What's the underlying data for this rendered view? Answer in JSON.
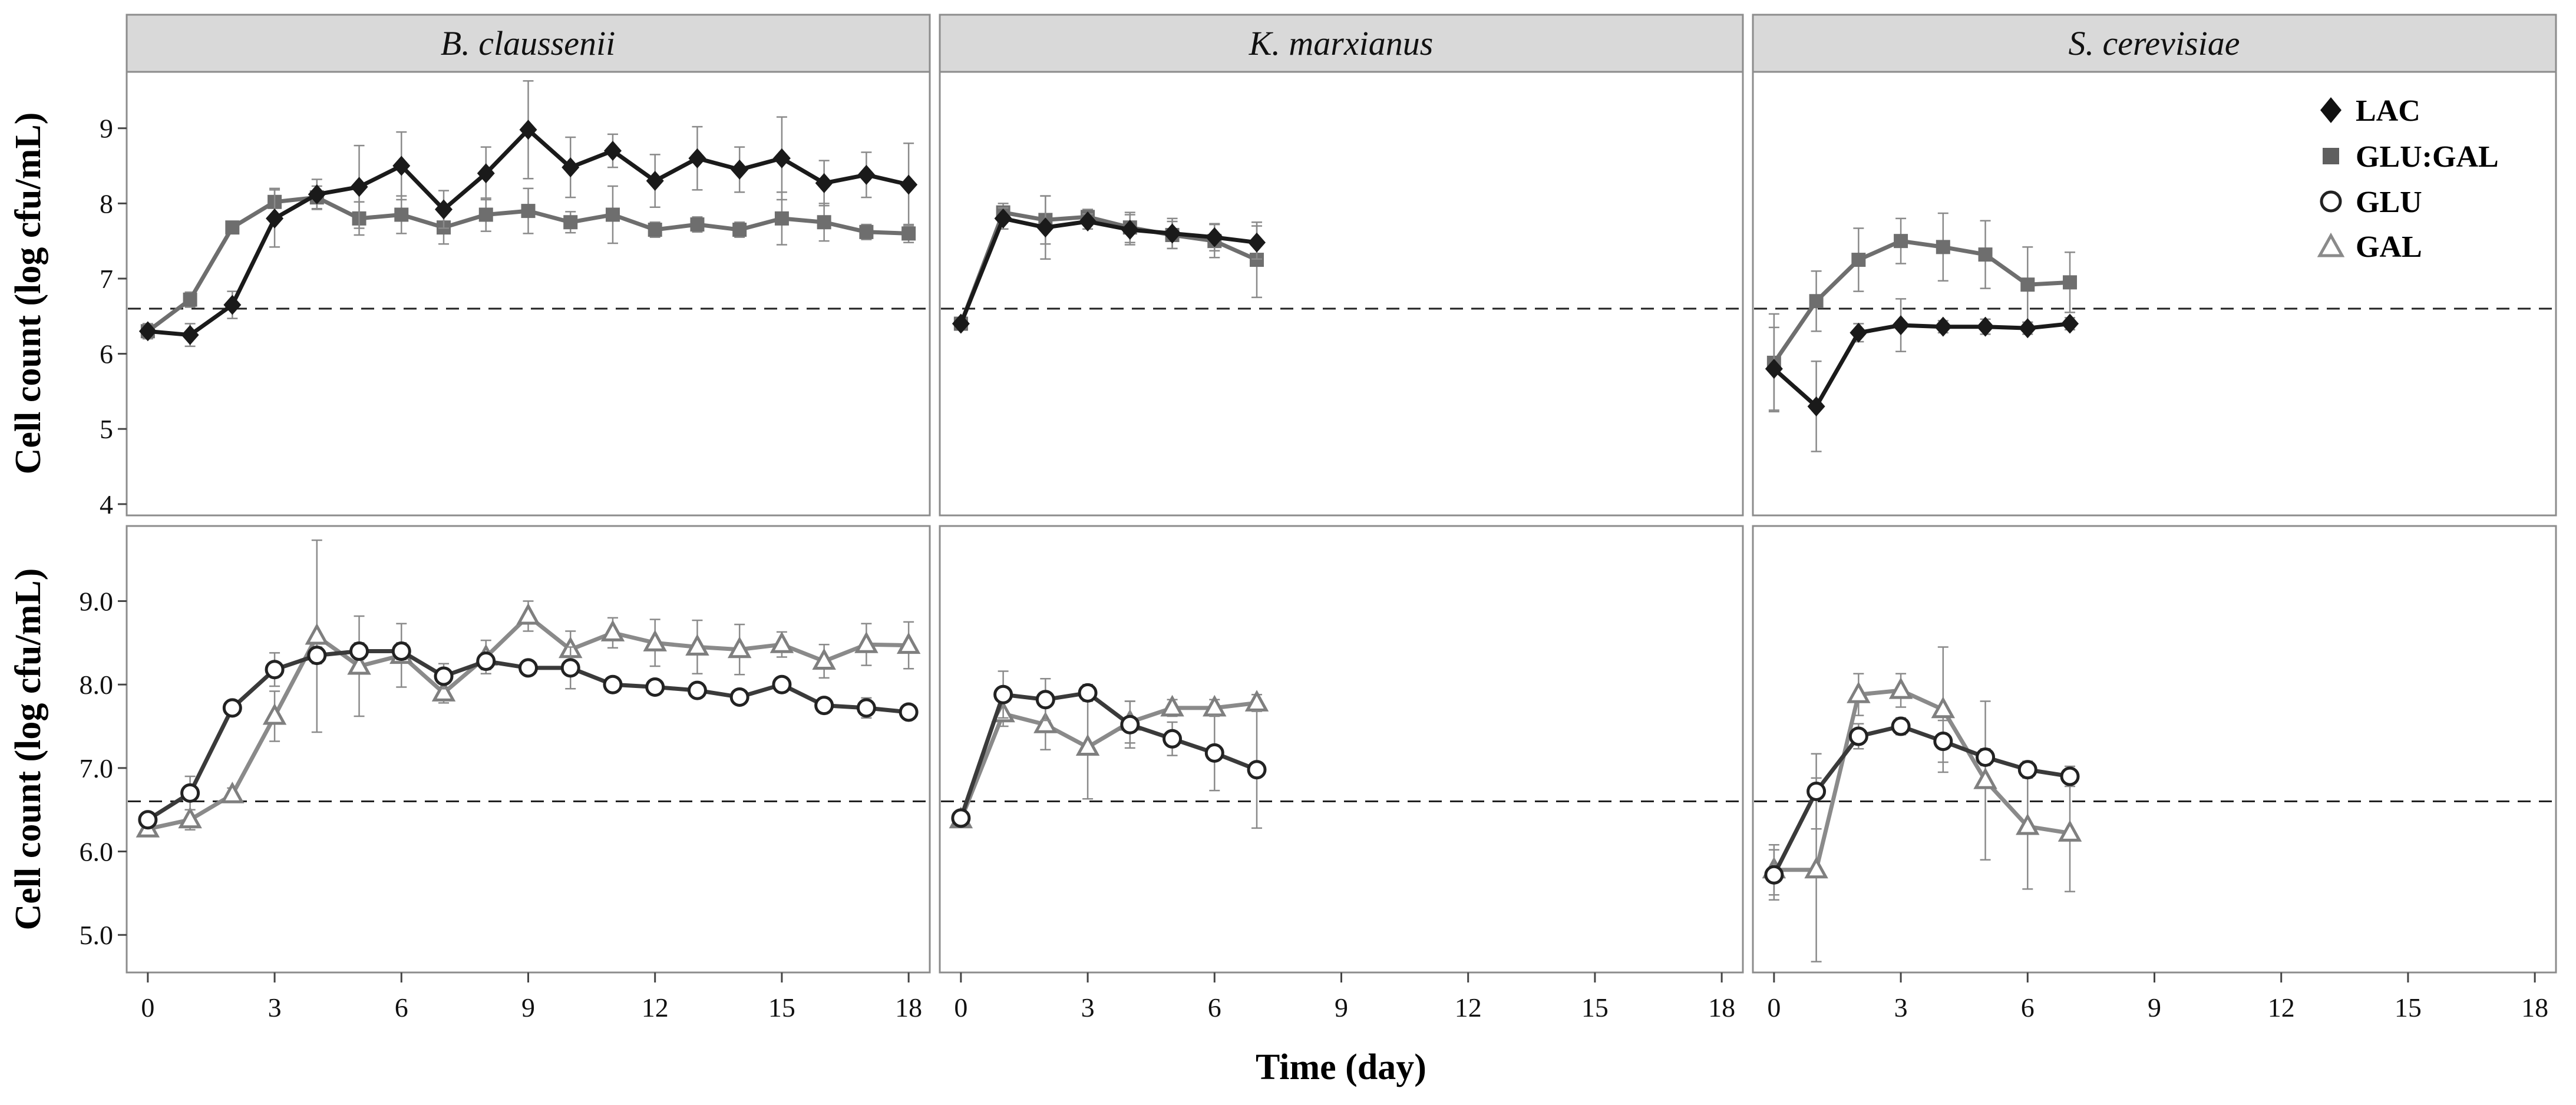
{
  "chart_data": {
    "type": "line",
    "xlabel": "Time (day)",
    "xlim": [
      -0.5,
      18.5
    ],
    "xticks": [
      0,
      3,
      6,
      9,
      12,
      15,
      18
    ],
    "xtick_labels": [
      "0",
      "3",
      "6",
      "9",
      "12",
      "15",
      "18"
    ],
    "reference_line": 6.6,
    "legend": {
      "placement": "top-right of S. cerevisiae top panel",
      "entries": [
        {
          "label": "LAC",
          "marker": "diamond",
          "color": "#111111"
        },
        {
          "label": "GLU:GAL",
          "marker": "square",
          "color": "#5f5f5f"
        },
        {
          "label": "GLU",
          "marker": "circle-open",
          "color": "#333333"
        },
        {
          "label": "GAL",
          "marker": "triangle-open",
          "color": "#8a8a8a"
        }
      ]
    },
    "columns": [
      "B. claussenii",
      "K. marxianus",
      "S. cerevisiae"
    ],
    "rows": [
      {
        "ylabel": "Cell count (log cfu/mL)",
        "ylim": [
          3.85,
          9.75
        ],
        "yticks": [
          4,
          5,
          6,
          7,
          8,
          9
        ],
        "ytick_labels": [
          "4",
          "5",
          "6",
          "7",
          "8",
          "9"
        ],
        "panels": [
          {
            "series": [
              {
                "name": "GLU:GAL",
                "marker": "square",
                "color": "#6e6e6e",
                "x": [
                  0,
                  1,
                  2,
                  3,
                  4,
                  5,
                  6,
                  7,
                  8,
                  9,
                  10,
                  11,
                  12,
                  13,
                  14,
                  15,
                  16,
                  17,
                  18
                ],
                "y": [
                  6.3,
                  6.72,
                  7.68,
                  8.02,
                  8.08,
                  7.8,
                  7.85,
                  7.68,
                  7.85,
                  7.9,
                  7.75,
                  7.85,
                  7.65,
                  7.72,
                  7.65,
                  7.8,
                  7.75,
                  7.62,
                  7.6
                ],
                "err": [
                  0.06,
                  0.1,
                  0.08,
                  0.18,
                  0.15,
                  0.22,
                  0.25,
                  0.22,
                  0.22,
                  0.3,
                  0.14,
                  0.38,
                  0.1,
                  0.1,
                  0.1,
                  0.35,
                  0.25,
                  0.1,
                  0.12
                ]
              },
              {
                "name": "LAC",
                "marker": "diamond",
                "color": "#1a1a1a",
                "x": [
                  0,
                  1,
                  2,
                  3,
                  4,
                  5,
                  6,
                  7,
                  8,
                  9,
                  10,
                  11,
                  12,
                  13,
                  14,
                  15,
                  16,
                  17,
                  18
                ],
                "y": [
                  6.3,
                  6.25,
                  6.65,
                  7.8,
                  8.12,
                  8.22,
                  8.5,
                  7.92,
                  8.4,
                  8.98,
                  8.48,
                  8.7,
                  8.3,
                  8.6,
                  8.45,
                  8.6,
                  8.27,
                  8.38,
                  8.25
                ],
                "err": [
                  0.1,
                  0.15,
                  0.18,
                  0.38,
                  0.2,
                  0.55,
                  0.45,
                  0.25,
                  0.35,
                  0.65,
                  0.4,
                  0.22,
                  0.35,
                  0.42,
                  0.3,
                  0.55,
                  0.3,
                  0.3,
                  0.55
                ]
              }
            ]
          },
          {
            "series": [
              {
                "name": "GLU:GAL",
                "marker": "square",
                "color": "#6e6e6e",
                "x": [
                  0,
                  1,
                  2,
                  3,
                  4,
                  5,
                  6,
                  7
                ],
                "y": [
                  6.4,
                  7.88,
                  7.78,
                  7.82,
                  7.68,
                  7.58,
                  7.5,
                  7.25
                ],
                "err": [
                  0.05,
                  0.12,
                  0.32,
                  0.1,
                  0.2,
                  0.18,
                  0.22,
                  0.5
                ]
              },
              {
                "name": "LAC",
                "marker": "diamond",
                "color": "#1a1a1a",
                "x": [
                  0,
                  1,
                  2,
                  3,
                  4,
                  5,
                  6,
                  7
                ],
                "y": [
                  6.4,
                  7.8,
                  7.68,
                  7.76,
                  7.65,
                  7.6,
                  7.55,
                  7.48
                ],
                "err": [
                  0.05,
                  0.14,
                  0.42,
                  0.1,
                  0.2,
                  0.2,
                  0.18,
                  0.22
                ]
              }
            ]
          },
          {
            "series": [
              {
                "name": "GLU:GAL",
                "marker": "square",
                "color": "#6e6e6e",
                "x": [
                  0,
                  1,
                  2,
                  3,
                  4,
                  5,
                  6,
                  7
                ],
                "y": [
                  5.88,
                  6.7,
                  7.25,
                  7.5,
                  7.42,
                  7.32,
                  6.92,
                  6.95
                ],
                "err": [
                  0.65,
                  0.4,
                  0.42,
                  0.3,
                  0.45,
                  0.45,
                  0.5,
                  0.4
                ]
              },
              {
                "name": "LAC",
                "marker": "diamond",
                "color": "#1a1a1a",
                "x": [
                  0,
                  1,
                  2,
                  3,
                  4,
                  5,
                  6,
                  7
                ],
                "y": [
                  5.8,
                  5.3,
                  6.28,
                  6.38,
                  6.36,
                  6.36,
                  6.34,
                  6.4
                ],
                "err": [
                  0.55,
                  0.6,
                  0.12,
                  0.35,
                  0.08,
                  0.1,
                  0.08,
                  0.08
                ]
              }
            ]
          }
        ]
      },
      {
        "ylabel": "Cell count (log cfu/mL)",
        "ylim": [
          4.55,
          9.9
        ],
        "yticks": [
          5,
          6,
          7,
          8,
          9
        ],
        "ytick_labels": [
          "5.0",
          "6.0",
          "7.0",
          "8.0",
          "9.0"
        ],
        "panels": [
          {
            "series": [
              {
                "name": "GAL",
                "marker": "triangle",
                "color": "#8a8a8a",
                "x": [
                  0,
                  1,
                  2,
                  3,
                  4,
                  5,
                  6,
                  7,
                  8,
                  9,
                  10,
                  11,
                  12,
                  13,
                  14,
                  15,
                  16,
                  17,
                  18
                ],
                "y": [
                  6.27,
                  6.38,
                  6.68,
                  7.62,
                  8.58,
                  8.22,
                  8.35,
                  7.9,
                  8.33,
                  8.82,
                  8.42,
                  8.62,
                  8.5,
                  8.45,
                  8.42,
                  8.48,
                  8.28,
                  8.48,
                  8.47
                ],
                "err": [
                  0.08,
                  0.12,
                  0.08,
                  0.3,
                  1.15,
                  0.6,
                  0.38,
                  0.12,
                  0.2,
                  0.18,
                  0.22,
                  0.18,
                  0.28,
                  0.32,
                  0.3,
                  0.15,
                  0.2,
                  0.25,
                  0.28
                ]
              },
              {
                "name": "GLU",
                "marker": "circle",
                "color": "#3a3a3a",
                "x": [
                  0,
                  1,
                  2,
                  3,
                  4,
                  5,
                  6,
                  7,
                  8,
                  9,
                  10,
                  11,
                  12,
                  13,
                  14,
                  15,
                  16,
                  17,
                  18
                ],
                "y": [
                  6.38,
                  6.7,
                  7.72,
                  8.18,
                  8.35,
                  8.4,
                  8.4,
                  8.1,
                  8.28,
                  8.2,
                  8.2,
                  8.0,
                  7.97,
                  7.93,
                  7.85,
                  8.0,
                  7.75,
                  7.72,
                  7.67
                ],
                "err": [
                  0.05,
                  0.2,
                  0.05,
                  0.2,
                  0.1,
                  0.1,
                  0.1,
                  0.15,
                  0.1,
                  0.05,
                  0.25,
                  0.08,
                  0.05,
                  0.05,
                  0.05,
                  0.08,
                  0.08,
                  0.12,
                  0.05
                ]
              }
            ]
          },
          {
            "series": [
              {
                "name": "GAL",
                "marker": "triangle",
                "color": "#8a8a8a",
                "x": [
                  0,
                  1,
                  2,
                  3,
                  4,
                  5,
                  6,
                  7
                ],
                "y": [
                  6.38,
                  7.65,
                  7.52,
                  7.25,
                  7.55,
                  7.72,
                  7.72,
                  7.78
                ],
                "err": [
                  0.05,
                  0.15,
                  0.3,
                  0.62,
                  0.25,
                  0.1,
                  0.1,
                  0.1
                ]
              },
              {
                "name": "GLU",
                "marker": "circle",
                "color": "#3a3a3a",
                "x": [
                  0,
                  1,
                  2,
                  3,
                  4,
                  5,
                  6,
                  7
                ],
                "y": [
                  6.4,
                  7.88,
                  7.82,
                  7.9,
                  7.52,
                  7.35,
                  7.18,
                  6.98
                ],
                "err": [
                  0.05,
                  0.28,
                  0.25,
                  0.1,
                  0.28,
                  0.2,
                  0.45,
                  0.7
                ]
              }
            ]
          },
          {
            "series": [
              {
                "name": "GAL",
                "marker": "triangle",
                "color": "#8a8a8a",
                "x": [
                  0,
                  1,
                  2,
                  3,
                  4,
                  5,
                  6,
                  7
                ],
                "y": [
                  5.78,
                  5.78,
                  7.88,
                  7.93,
                  7.7,
                  6.85,
                  6.3,
                  6.22
                ],
                "err": [
                  0.3,
                  1.1,
                  0.25,
                  0.2,
                  0.75,
                  0.95,
                  0.75,
                  0.7
                ]
              },
              {
                "name": "GLU",
                "marker": "circle",
                "color": "#3a3a3a",
                "x": [
                  0,
                  1,
                  2,
                  3,
                  4,
                  5,
                  6,
                  7
                ],
                "y": [
                  5.72,
                  6.72,
                  7.38,
                  7.5,
                  7.32,
                  7.13,
                  6.98,
                  6.9
                ],
                "err": [
                  0.3,
                  0.45,
                  0.15,
                  0.1,
                  0.25,
                  0.1,
                  0.1,
                  0.12
                ]
              }
            ]
          }
        ]
      }
    ]
  }
}
